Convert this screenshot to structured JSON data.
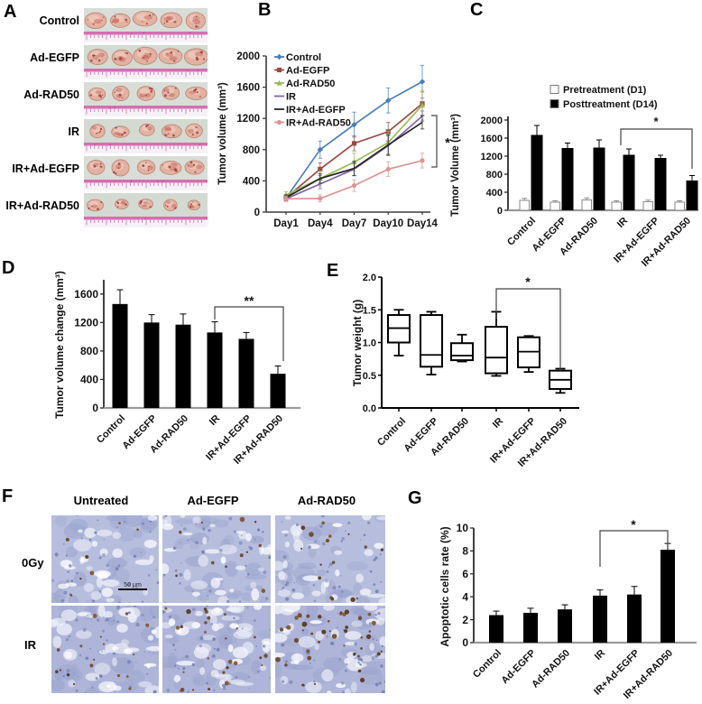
{
  "panels": {
    "a": "A",
    "b": "B",
    "c": "C",
    "d": "D",
    "e": "E",
    "f": "F",
    "g": "G"
  },
  "groups": [
    "Control",
    "Ad-EGFP",
    "Ad-RAD50",
    "IR",
    "IR+Ad-EGFP",
    "IR+Ad-RAD50"
  ],
  "panel_a": {
    "rows": [
      {
        "label": "Control"
      },
      {
        "label": "Ad-EGFP"
      },
      {
        "label": "Ad-RAD50"
      },
      {
        "label": "IR"
      },
      {
        "label": "IR+Ad-EGFP"
      },
      {
        "label": "IR+Ad-RAD50"
      }
    ]
  },
  "panel_f": {
    "columns": [
      "Untreated",
      "Ad-EGFP",
      "Ad-RAD50"
    ],
    "rows": [
      "0Gy",
      "IR"
    ],
    "scale_bar_label": "50 μm"
  },
  "colors": {
    "control": "#4a7ebb",
    "ad_egfp": "#9a4a44",
    "ad_rad50": "#9bbb59",
    "ir": "#8064a2",
    "ir_ad_egfp": "#262626",
    "ir_ad_rad50": "#d99694",
    "bar_fill": "#000000",
    "pre_bar_fill": "#ffffff"
  },
  "chart_data": [
    {
      "panel": "B",
      "type": "line",
      "ylabel": "Tumor volume (mm³)",
      "x": [
        "Day1",
        "Day4",
        "Day7",
        "Day10",
        "Day14"
      ],
      "ylim": [
        0,
        2000
      ],
      "yticks": [
        0,
        400,
        800,
        1200,
        1600,
        2000
      ],
      "legend_position": "top-left-inside",
      "significance": "*",
      "sig_between": [
        "IR+Ad-RAD50",
        "other groups at Day14"
      ],
      "series": [
        {
          "name": "Control",
          "color": "#4a7ebb",
          "marker": "diamond",
          "values": [
            180,
            800,
            1120,
            1430,
            1670
          ],
          "errors": [
            40,
            110,
            160,
            160,
            210
          ]
        },
        {
          "name": "Ad-EGFP",
          "color": "#9a4a44",
          "marker": "square",
          "values": [
            185,
            550,
            880,
            1030,
            1390
          ],
          "errors": [
            40,
            80,
            95,
            120,
            150
          ]
        },
        {
          "name": "Ad-RAD50",
          "color": "#9bbb59",
          "marker": "triangle",
          "values": [
            220,
            430,
            640,
            890,
            1370
          ],
          "errors": [
            40,
            95,
            115,
            145,
            190
          ]
        },
        {
          "name": "IR",
          "color": "#8064a2",
          "marker": "none",
          "values": [
            170,
            360,
            550,
            850,
            1230
          ],
          "errors": [
            30,
            60,
            85,
            125,
            65
          ]
        },
        {
          "name": "IR+Ad-EGFP",
          "color": "#262626",
          "marker": "none",
          "values": [
            185,
            430,
            560,
            860,
            1150
          ],
          "errors": [
            35,
            60,
            90,
            130,
            85
          ]
        },
        {
          "name": "IR+Ad-RAD50",
          "color": "#d99694",
          "marker": "circle",
          "values": [
            170,
            175,
            340,
            550,
            660
          ],
          "errors": [
            30,
            45,
            75,
            95,
            95
          ]
        }
      ]
    },
    {
      "panel": "C",
      "type": "bar",
      "grouped": true,
      "ylabel": "Tumor Volume (mm³)",
      "categories": [
        "Control",
        "Ad-EGFP",
        "Ad-RAD50",
        "IR",
        "IR+Ad-EGFP",
        "IR+Ad-RAD50"
      ],
      "ylim": [
        0,
        2000
      ],
      "yticks": [
        0,
        400,
        800,
        1200,
        1600,
        2000
      ],
      "significance": "*",
      "sig_between": [
        "IR",
        "IR+Ad-RAD50"
      ],
      "series": [
        {
          "name": "Pretreatment (D1)",
          "fill": "#ffffff",
          "values": [
            220,
            180,
            230,
            180,
            190,
            180
          ],
          "errors": [
            45,
            30,
            45,
            30,
            35,
            30
          ]
        },
        {
          "name": "Posttreatment (D14)",
          "fill": "#000000",
          "values": [
            1670,
            1380,
            1390,
            1230,
            1160,
            660
          ],
          "errors": [
            210,
            110,
            170,
            130,
            60,
            110
          ]
        }
      ]
    },
    {
      "panel": "D",
      "type": "bar",
      "ylabel": "Tumor volume change (mm³)",
      "categories": [
        "Control",
        "Ad-EGFP",
        "Ad-RAD50",
        "IR",
        "IR+Ad-EGFP",
        "IR+Ad-RAD50"
      ],
      "ylim": [
        0,
        1800
      ],
      "yticks": [
        0,
        400,
        800,
        1200,
        1600
      ],
      "significance": "**",
      "sig_between": [
        "IR",
        "IR+Ad-RAD50"
      ],
      "values": [
        1460,
        1200,
        1170,
        1060,
        970,
        480
      ],
      "errors": [
        200,
        110,
        150,
        150,
        90,
        110
      ]
    },
    {
      "panel": "E",
      "type": "box",
      "ylabel": "Tumor weight (g)",
      "categories": [
        "Control",
        "Ad-EGFP",
        "Ad-RAD50",
        "IR",
        "IR+Ad-EGFP",
        "IR+Ad-RAD50"
      ],
      "ylim": [
        0,
        2
      ],
      "yticks": [
        "0.0",
        "0.5",
        "1.0",
        "1.5",
        "2.0"
      ],
      "significance": "*",
      "sig_between": [
        "IR",
        "IR+Ad-RAD50"
      ],
      "boxes": [
        {
          "min": 0.8,
          "q1": 1.0,
          "median": 1.22,
          "q3": 1.42,
          "max": 1.5
        },
        {
          "min": 0.51,
          "q1": 0.63,
          "median": 0.81,
          "q3": 1.42,
          "max": 1.47
        },
        {
          "min": 0.71,
          "q1": 0.73,
          "median": 0.8,
          "q3": 0.99,
          "max": 1.12
        },
        {
          "min": 0.49,
          "q1": 0.53,
          "median": 0.77,
          "q3": 1.24,
          "max": 1.47
        },
        {
          "min": 0.55,
          "q1": 0.62,
          "median": 0.86,
          "q3": 1.08,
          "max": 1.1
        },
        {
          "min": 0.23,
          "q1": 0.29,
          "median": 0.43,
          "q3": 0.57,
          "max": 0.6
        }
      ]
    },
    {
      "panel": "G",
      "type": "bar",
      "ylabel": "Apoptotic cells rate (%)",
      "categories": [
        "Control",
        "Ad-EGFP",
        "Ad-RAD50",
        "IR",
        "IR+Ad-EGFP",
        "IR+Ad-RAD50"
      ],
      "ylim": [
        0,
        10
      ],
      "yticks": [
        0,
        2,
        4,
        6,
        8,
        10
      ],
      "significance": "*",
      "sig_between": [
        "IR",
        "IR+Ad-RAD50"
      ],
      "values": [
        2.4,
        2.6,
        2.9,
        4.1,
        4.2,
        8.1
      ],
      "errors": [
        0.35,
        0.4,
        0.4,
        0.5,
        0.7,
        0.55
      ]
    }
  ]
}
